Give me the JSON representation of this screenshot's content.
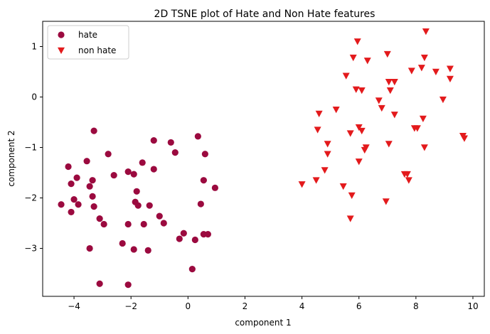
{
  "chart_data": {
    "type": "scatter",
    "title": "2D TSNE plot of Hate and Non Hate features",
    "xlabel": "component 1",
    "ylabel": "component 2",
    "xlim": [
      -5.1,
      10.4
    ],
    "ylim": [
      -3.95,
      1.5
    ],
    "xticks": [
      -4,
      -2,
      0,
      2,
      4,
      6,
      8,
      10
    ],
    "yticks": [
      1,
      0,
      -1,
      -2,
      -3
    ],
    "legend_position": "top-left",
    "series": [
      {
        "name": "hate",
        "marker": "circle",
        "color": "#9b0a3f",
        "points": [
          [
            -3.3,
            -0.67
          ],
          [
            -2.8,
            -1.13
          ],
          [
            -2.6,
            -1.55
          ],
          [
            -2.1,
            -1.48
          ],
          [
            -1.9,
            -1.53
          ],
          [
            -1.8,
            -1.87
          ],
          [
            -1.2,
            -0.86
          ],
          [
            -1.6,
            -1.3
          ],
          [
            -1.2,
            -1.43
          ],
          [
            -0.6,
            -0.9
          ],
          [
            -0.45,
            -1.1
          ],
          [
            0.35,
            -0.78
          ],
          [
            0.6,
            -1.13
          ],
          [
            0.55,
            -1.65
          ],
          [
            0.95,
            -1.8
          ],
          [
            0.45,
            -2.12
          ],
          [
            -4.2,
            -1.38
          ],
          [
            -4.1,
            -1.72
          ],
          [
            -3.9,
            -1.6
          ],
          [
            -3.55,
            -1.27
          ],
          [
            -3.45,
            -1.77
          ],
          [
            -3.35,
            -1.65
          ],
          [
            -3.35,
            -1.97
          ],
          [
            -4.45,
            -2.13
          ],
          [
            -4.0,
            -2.03
          ],
          [
            -3.85,
            -2.13
          ],
          [
            -4.1,
            -2.28
          ],
          [
            -3.3,
            -2.17
          ],
          [
            -3.1,
            -2.41
          ],
          [
            -2.95,
            -2.52
          ],
          [
            -2.1,
            -2.52
          ],
          [
            -1.85,
            -2.08
          ],
          [
            -1.75,
            -2.15
          ],
          [
            -1.55,
            -2.52
          ],
          [
            -1.35,
            -2.15
          ],
          [
            -1.0,
            -2.36
          ],
          [
            -0.85,
            -2.5
          ],
          [
            -2.3,
            -2.9
          ],
          [
            -1.9,
            -3.02
          ],
          [
            -1.4,
            -3.04
          ],
          [
            -3.45,
            -3.0
          ],
          [
            -0.3,
            -2.81
          ],
          [
            -0.15,
            -2.7
          ],
          [
            0.25,
            -2.83
          ],
          [
            0.55,
            -2.72
          ],
          [
            0.7,
            -2.72
          ],
          [
            0.15,
            -3.41
          ],
          [
            -3.1,
            -3.7
          ],
          [
            -2.1,
            -3.72
          ]
        ]
      },
      {
        "name": "non hate",
        "marker": "triangle-down",
        "color": "#e31a1c",
        "points": [
          [
            8.35,
            1.3
          ],
          [
            5.95,
            1.1
          ],
          [
            7.0,
            0.85
          ],
          [
            5.8,
            0.78
          ],
          [
            6.3,
            0.72
          ],
          [
            8.3,
            0.78
          ],
          [
            7.85,
            0.52
          ],
          [
            8.2,
            0.58
          ],
          [
            8.7,
            0.5
          ],
          [
            9.2,
            0.56
          ],
          [
            5.55,
            0.42
          ],
          [
            9.2,
            0.36
          ],
          [
            7.05,
            0.3
          ],
          [
            7.25,
            0.3
          ],
          [
            5.9,
            0.15
          ],
          [
            6.1,
            0.13
          ],
          [
            7.1,
            0.13
          ],
          [
            8.95,
            -0.05
          ],
          [
            6.7,
            -0.07
          ],
          [
            6.8,
            -0.22
          ],
          [
            5.2,
            -0.25
          ],
          [
            7.25,
            -0.35
          ],
          [
            4.6,
            -0.33
          ],
          [
            8.25,
            -0.43
          ],
          [
            4.55,
            -0.65
          ],
          [
            6.0,
            -0.6
          ],
          [
            6.1,
            -0.67
          ],
          [
            5.7,
            -0.72
          ],
          [
            7.95,
            -0.62
          ],
          [
            8.05,
            -0.62
          ],
          [
            9.65,
            -0.77
          ],
          [
            9.7,
            -0.82
          ],
          [
            4.9,
            -0.93
          ],
          [
            7.05,
            -0.93
          ],
          [
            6.25,
            -1.0
          ],
          [
            6.2,
            -1.05
          ],
          [
            8.3,
            -1.0
          ],
          [
            4.9,
            -1.13
          ],
          [
            6.0,
            -1.28
          ],
          [
            4.8,
            -1.45
          ],
          [
            7.6,
            -1.53
          ],
          [
            7.7,
            -1.53
          ],
          [
            7.75,
            -1.65
          ],
          [
            4.5,
            -1.65
          ],
          [
            4.0,
            -1.73
          ],
          [
            5.45,
            -1.77
          ],
          [
            5.75,
            -1.95
          ],
          [
            6.95,
            -2.07
          ],
          [
            5.7,
            -2.41
          ]
        ]
      }
    ]
  }
}
